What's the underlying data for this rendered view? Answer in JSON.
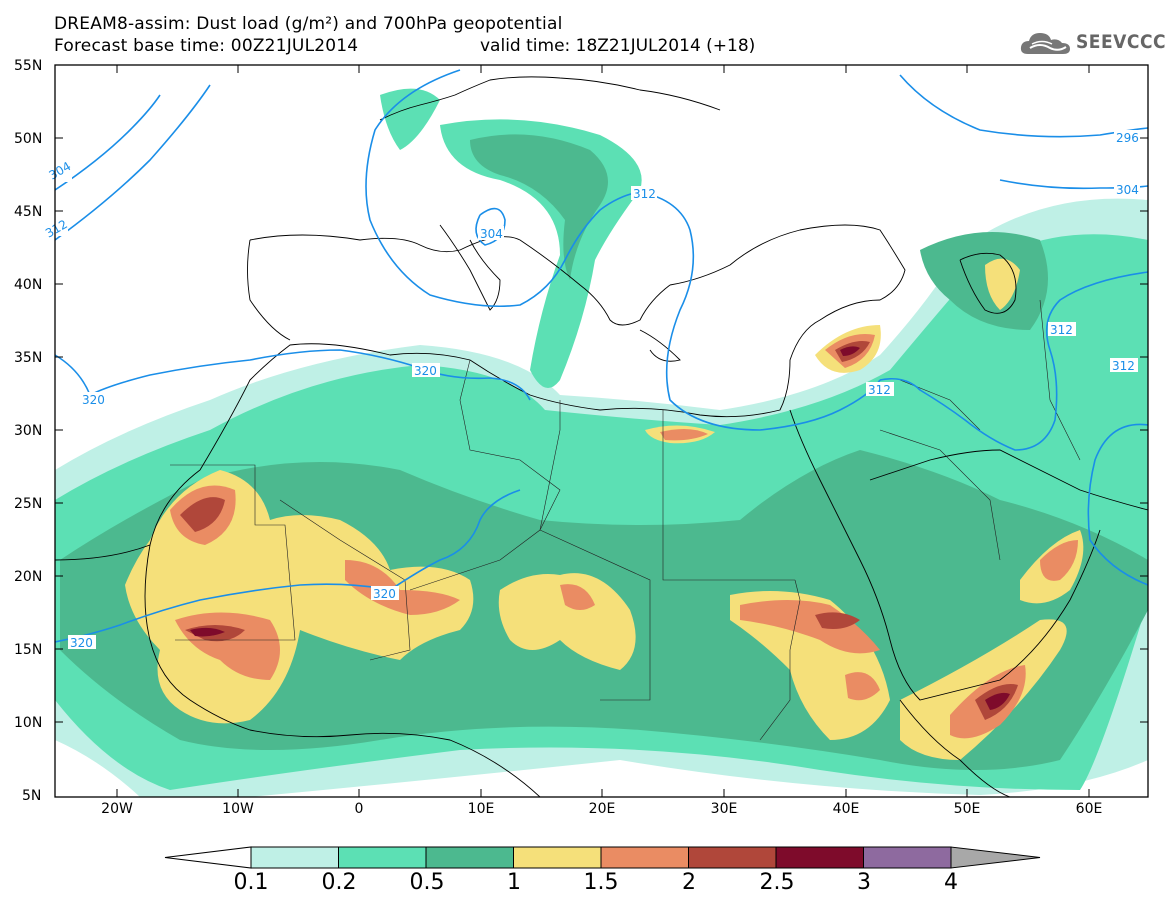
{
  "header": {
    "title_line1": "DREAM8-assim: Dust load (g/m²) and 700hPa geopotential",
    "title_line2": "Forecast base time: 00Z21JUL2014",
    "valid_time": "valid time: 18Z21JUL2014 (+18)",
    "logo_text": "SEEVCCC"
  },
  "map": {
    "lat_labels": [
      "55N",
      "50N",
      "45N",
      "40N",
      "35N",
      "30N",
      "25N",
      "20N",
      "15N",
      "10N",
      "5N"
    ],
    "lon_labels": [
      "20W",
      "10W",
      "0",
      "10E",
      "20E",
      "30E",
      "40E",
      "50E",
      "60E"
    ],
    "contour_labels": [
      "304",
      "312",
      "304",
      "312",
      "296",
      "304",
      "320",
      "312",
      "312",
      "312",
      "320",
      "320",
      "320"
    ]
  },
  "colorbar": {
    "levels": [
      "0.1",
      "0.2",
      "0.5",
      "1",
      "1.5",
      "2",
      "2.5",
      "3",
      "4"
    ],
    "colors": [
      "#bff0e6",
      "#5ce0b4",
      "#4cb98f",
      "#f5e07a",
      "#ea8c63",
      "#b0473a",
      "#7e0b2b",
      "#8e6a9f"
    ],
    "low_color": "#ffffff",
    "high_color": "#a8a8a8"
  }
}
